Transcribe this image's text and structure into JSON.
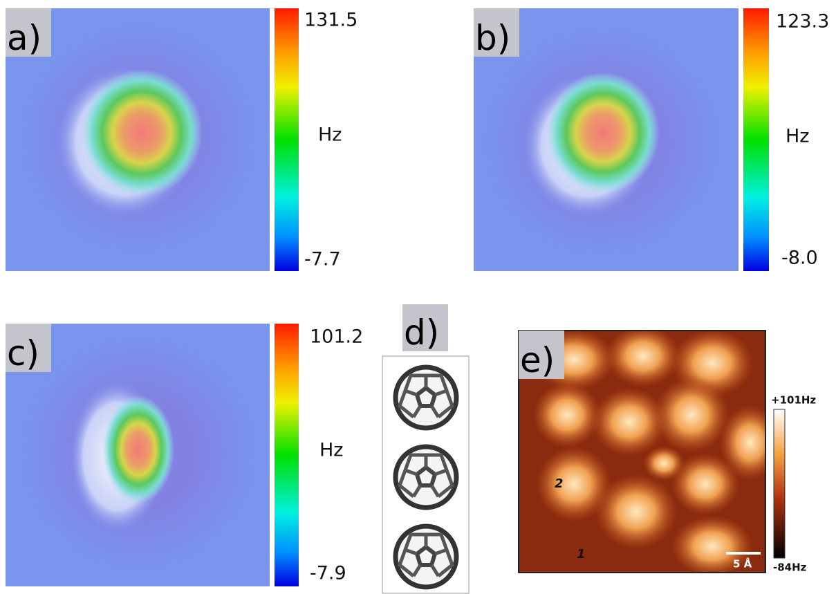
{
  "panels": [
    {
      "label": "a)",
      "colorbar": {
        "max": "131.5",
        "unit": "Hz",
        "min": "-7.7"
      }
    },
    {
      "label": "b)",
      "colorbar": {
        "max": "123.3",
        "unit": "Hz",
        "min": "-8.0"
      }
    },
    {
      "label": "c)",
      "colorbar": {
        "max": "101.2",
        "unit": "Hz",
        "min": "-7.9"
      }
    },
    {
      "label": "d)"
    },
    {
      "label": "e)",
      "colorbar": {
        "max": "+101Hz",
        "min": "-84Hz"
      },
      "markers": [
        "2",
        "1"
      ],
      "scale_bar": "5 Å"
    }
  ]
}
